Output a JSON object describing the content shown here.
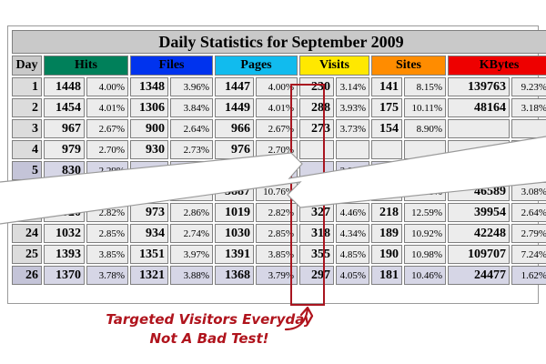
{
  "title": "Daily Statistics for September 2009",
  "headers": {
    "day": "Day",
    "hits": "Hits",
    "files": "Files",
    "pages": "Pages",
    "visits": "Visits",
    "sites": "Sites",
    "kbytes": "KBytes"
  },
  "colors": {
    "hits": "#00805a",
    "files": "#0033ee",
    "pages": "#11bbee",
    "visits": "#ffe800",
    "sites": "#ff8c00",
    "kbytes": "#ee0000",
    "highlight": "#a8151f"
  },
  "rows": [
    {
      "day": "1",
      "hits": "1448",
      "hits_pct": "4.00%",
      "files": "1348",
      "files_pct": "3.96%",
      "pages": "1447",
      "pages_pct": "4.00%",
      "visits": "230",
      "visits_pct": "3.14%",
      "sites": "141",
      "sites_pct": "8.15%",
      "kbytes": "139763",
      "kbytes_pct": "9.23%"
    },
    {
      "day": "2",
      "hits": "1454",
      "hits_pct": "4.01%",
      "files": "1306",
      "files_pct": "3.84%",
      "pages": "1449",
      "pages_pct": "4.01%",
      "visits": "288",
      "visits_pct": "3.93%",
      "sites": "175",
      "sites_pct": "10.11%",
      "kbytes": "48164",
      "kbytes_pct": "3.18%"
    },
    {
      "day": "3",
      "hits": "967",
      "hits_pct": "2.67%",
      "files": "900",
      "files_pct": "2.64%",
      "pages": "966",
      "pages_pct": "2.67%",
      "visits": "273",
      "visits_pct": "3.73%",
      "sites": "154",
      "sites_pct": "8.90%",
      "kbytes": "",
      "kbytes_pct": ""
    },
    {
      "day": "4",
      "hits": "979",
      "hits_pct": "2.70%",
      "files": "930",
      "files_pct": "2.73%",
      "pages": "976",
      "pages_pct": "2.70%",
      "visits": "",
      "visits_pct": "",
      "sites": "",
      "sites_pct": "",
      "kbytes": "",
      "kbytes_pct": "1.65%"
    },
    {
      "day": "5",
      "hits": "830",
      "hits_pct": "2.29%",
      "files": "",
      "files_pct": "",
      "pages": "",
      "pages_pct": "",
      "visits": "",
      "visits_pct": "3.88%",
      "sites": "195",
      "sites_pct": "11.27%",
      "kbytes": "32326",
      "kbytes_pct": "2.13%"
    },
    {
      "day": "",
      "hits": "",
      "hits_pct": "",
      "files": "",
      "files_pct": "10.92%",
      "pages": "3887",
      "pages_pct": "10.76%",
      "visits": "274",
      "visits_pct": "3.74%",
      "sites": "186",
      "sites_pct": "10.75%",
      "kbytes": "46589",
      "kbytes_pct": "3.08%"
    },
    {
      "day": "23",
      "hits": "1020",
      "hits_pct": "2.82%",
      "files": "973",
      "files_pct": "2.86%",
      "pages": "1019",
      "pages_pct": "2.82%",
      "visits": "327",
      "visits_pct": "4.46%",
      "sites": "218",
      "sites_pct": "12.59%",
      "kbytes": "39954",
      "kbytes_pct": "2.64%"
    },
    {
      "day": "24",
      "hits": "1032",
      "hits_pct": "2.85%",
      "files": "934",
      "files_pct": "2.74%",
      "pages": "1030",
      "pages_pct": "2.85%",
      "visits": "318",
      "visits_pct": "4.34%",
      "sites": "189",
      "sites_pct": "10.92%",
      "kbytes": "42248",
      "kbytes_pct": "2.79%"
    },
    {
      "day": "25",
      "hits": "1393",
      "hits_pct": "3.85%",
      "files": "1351",
      "files_pct": "3.97%",
      "pages": "1391",
      "pages_pct": "3.85%",
      "visits": "355",
      "visits_pct": "4.85%",
      "sites": "190",
      "sites_pct": "10.98%",
      "kbytes": "109707",
      "kbytes_pct": "7.24%"
    },
    {
      "day": "26",
      "hits": "1370",
      "hits_pct": "3.78%",
      "files": "1321",
      "files_pct": "3.88%",
      "pages": "1368",
      "pages_pct": "3.79%",
      "visits": "297",
      "visits_pct": "4.05%",
      "sites": "181",
      "sites_pct": "10.46%",
      "kbytes": "24477",
      "kbytes_pct": "1.62%"
    }
  ],
  "annotation": {
    "line1": "Targeted Visitors Everyday",
    "line2": "Not A Bad Test!"
  }
}
